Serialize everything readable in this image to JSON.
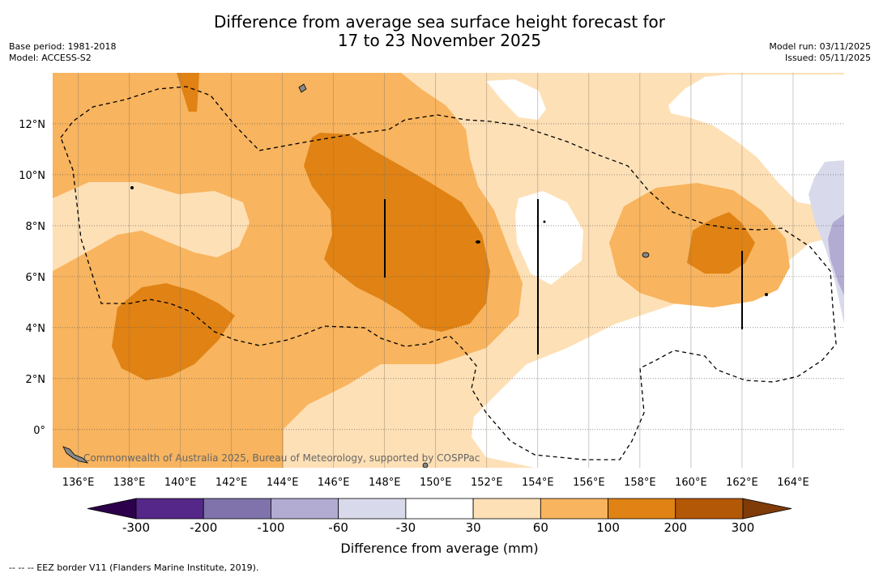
{
  "title_line1": "Difference from average sea surface height forecast for",
  "title_line2": "17 to 23 November 2025",
  "meta_left": [
    "Base period: 1981-2018",
    "Model: ACCESS-S2"
  ],
  "meta_right": [
    "Model run: 03/11/2025",
    "Issued: 05/11/2025"
  ],
  "map": {
    "lon_labels": [
      "136°E",
      "138°E",
      "140°E",
      "142°E",
      "144°E",
      "146°E",
      "148°E",
      "150°E",
      "152°E",
      "154°E",
      "156°E",
      "158°E",
      "160°E",
      "162°E",
      "164°E"
    ],
    "lon_values": [
      136,
      138,
      140,
      142,
      144,
      146,
      148,
      150,
      152,
      154,
      156,
      158,
      160,
      162,
      164
    ],
    "lat_labels": [
      "12°N",
      "10°N",
      "8°N",
      "6°N",
      "4°N",
      "2°N",
      "0°"
    ],
    "lat_values": [
      12,
      10,
      8,
      6,
      4,
      2,
      0
    ],
    "lon_range": [
      135,
      166
    ],
    "lat_range": [
      -1.5,
      14
    ],
    "copyright": "Commonwealth of Australia 2025, Bureau of Meteorology, supported by COSPPac"
  },
  "colorbar": {
    "title": "Difference from average (mm)",
    "tick_labels": [
      "-300",
      "-200",
      "-100",
      "-60",
      "-30",
      "30",
      "60",
      "100",
      "200",
      "300"
    ],
    "colors": {
      "lt_-300": "#2d004b",
      "-300_-200": "#542788",
      "-200_-100": "#8073ac",
      "-100_-60": "#b2abd2",
      "-60_-30": "#d8daeb",
      "-30_30": "#ffffff",
      "30_60": "#fee0b6",
      "60_100": "#f8b45e",
      "100_200": "#e08214",
      "200_300": "#b35806",
      "gt_300": "#7f3b08"
    }
  },
  "footnote": "--  --  -- EEZ border V11 (Flanders Marine Institute, 2019)."
}
